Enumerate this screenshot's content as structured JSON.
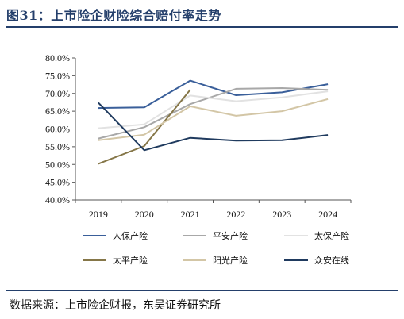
{
  "title": "图31：上市险企财险综合赔付率走势",
  "source": "数据来源：上市险企财报，东吴证券研究所",
  "chart_data": {
    "type": "line",
    "x": [
      "2019",
      "2020",
      "2021",
      "2022",
      "2023",
      "2024"
    ],
    "ylim": [
      40,
      80
    ],
    "yticks": [
      "40.0%",
      "45.0%",
      "50.0%",
      "55.0%",
      "60.0%",
      "65.0%",
      "70.0%",
      "75.0%",
      "80.0%"
    ],
    "series": [
      {
        "name": "人保产险",
        "color": "#3a5f9a",
        "values": [
          65.9,
          66.1,
          73.6,
          69.5,
          70.3,
          72.6
        ]
      },
      {
        "name": "平安产险",
        "color": "#a8a8a8",
        "values": [
          57.3,
          60.5,
          67.0,
          71.3,
          71.5,
          71.0
        ]
      },
      {
        "name": "太保产险",
        "color": "#e2e2e2",
        "values": [
          60.2,
          61.3,
          69.4,
          67.8,
          68.9,
          70.6
        ]
      },
      {
        "name": "太平产险",
        "color": "#857648",
        "values": [
          50.2,
          55.2,
          71.0,
          null,
          null,
          null
        ]
      },
      {
        "name": "阳光产险",
        "color": "#d3c6a6",
        "values": [
          56.8,
          58.4,
          66.4,
          63.7,
          65.0,
          68.4
        ]
      },
      {
        "name": "众安在线",
        "color": "#1f3a5e",
        "values": [
          67.4,
          54.0,
          57.5,
          56.7,
          56.8,
          58.3
        ]
      }
    ]
  }
}
